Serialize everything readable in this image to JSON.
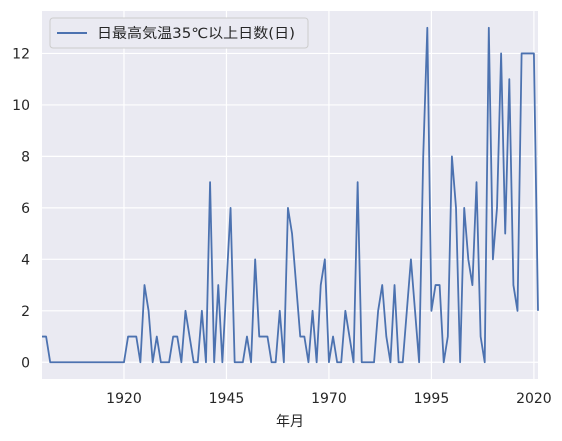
{
  "chart_data": {
    "type": "line",
    "title": "",
    "xlabel": "年月",
    "ylabel": "",
    "xlim": [
      1900,
      2021
    ],
    "ylim": [
      -0.65,
      13.65
    ],
    "xticks": [
      1920,
      1945,
      1970,
      1995,
      2020
    ],
    "yticks": [
      0,
      2,
      4,
      6,
      8,
      10,
      12
    ],
    "grid": true,
    "legend_position": "top-left",
    "series": [
      {
        "name": "日最高気温35℃以上日数(日)",
        "color": "#4c72b0",
        "x": [
          1900,
          1901,
          1902,
          1903,
          1904,
          1905,
          1906,
          1907,
          1908,
          1909,
          1910,
          1911,
          1912,
          1913,
          1914,
          1915,
          1916,
          1917,
          1918,
          1919,
          1920,
          1921,
          1922,
          1923,
          1924,
          1925,
          1926,
          1927,
          1928,
          1929,
          1930,
          1931,
          1932,
          1933,
          1934,
          1935,
          1936,
          1937,
          1938,
          1939,
          1940,
          1941,
          1942,
          1943,
          1944,
          1945,
          1946,
          1947,
          1948,
          1949,
          1950,
          1951,
          1952,
          1953,
          1954,
          1955,
          1956,
          1957,
          1958,
          1959,
          1960,
          1961,
          1962,
          1963,
          1964,
          1965,
          1966,
          1967,
          1968,
          1969,
          1970,
          1971,
          1972,
          1973,
          1974,
          1975,
          1976,
          1977,
          1978,
          1979,
          1980,
          1981,
          1982,
          1983,
          1984,
          1985,
          1986,
          1987,
          1988,
          1989,
          1990,
          1991,
          1992,
          1993,
          1994,
          1995,
          1996,
          1997,
          1998,
          1999,
          2000,
          2001,
          2002,
          2003,
          2004,
          2005,
          2006,
          2007,
          2008,
          2009,
          2010,
          2011,
          2012,
          2013,
          2014,
          2015,
          2016,
          2017,
          2018,
          2019,
          2020,
          2021
        ],
        "y": [
          1,
          1,
          0,
          0,
          0,
          0,
          0,
          0,
          0,
          0,
          0,
          0,
          0,
          0,
          0,
          0,
          0,
          0,
          0,
          0,
          0,
          1,
          1,
          1,
          0,
          3,
          2,
          0,
          1,
          0,
          0,
          0,
          1,
          1,
          0,
          2,
          1,
          0,
          0,
          2,
          0,
          7,
          0,
          3,
          0,
          3,
          6,
          0,
          0,
          0,
          1,
          0,
          4,
          1,
          1,
          1,
          0,
          0,
          2,
          0,
          6,
          5,
          3,
          1,
          1,
          0,
          2,
          0,
          3,
          4,
          0,
          1,
          0,
          0,
          2,
          1,
          0,
          7,
          0,
          0,
          0,
          0,
          2,
          3,
          1,
          0,
          3,
          0,
          0,
          2,
          4,
          2,
          0,
          8,
          13,
          2,
          3,
          3,
          0,
          1,
          8,
          6,
          0,
          6,
          4,
          3,
          7,
          1,
          0,
          13,
          4,
          6,
          12,
          5,
          11,
          3,
          2,
          12,
          12,
          12,
          12,
          2
        ]
      }
    ]
  }
}
